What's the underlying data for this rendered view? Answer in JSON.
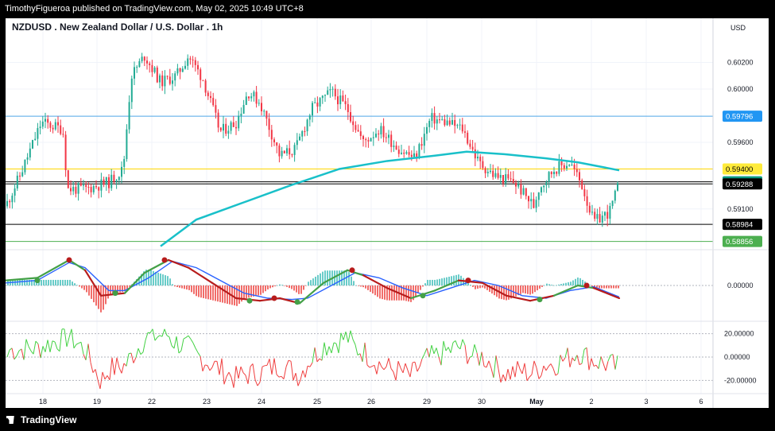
{
  "header": {
    "publish_line": "TimothyFigueroa published on TradingView.com, May 02, 2025 10:49 UTC+8"
  },
  "footer": {
    "logo_text": "TradingView"
  },
  "chart_data": [
    {
      "type": "candlestick",
      "title": "NZDUSD . New Zealand Dollar / U.S. Dollar . 1h",
      "currency": "USD",
      "x_tick_labels": [
        "18",
        "19",
        "22",
        "23",
        "24",
        "25",
        "26",
        "29",
        "30",
        "May",
        "2",
        "3",
        "6"
      ],
      "y_tick_labels": [
        "0.60200",
        "0.60000",
        "0.59600",
        "0.59100"
      ],
      "ylim": [
        0.588,
        0.604
      ],
      "price_path": [
        [
          0,
          0.5912
        ],
        [
          18,
          0.5935
        ],
        [
          45,
          0.5975
        ],
        [
          72,
          0.597
        ],
        [
          78,
          0.5925
        ],
        [
          100,
          0.5925
        ],
        [
          130,
          0.593
        ],
        [
          148,
          0.594
        ],
        [
          158,
          0.601
        ],
        [
          175,
          0.6025
        ],
        [
          195,
          0.6005
        ],
        [
          215,
          0.601
        ],
        [
          230,
          0.6025
        ],
        [
          248,
          0.6008
        ],
        [
          270,
          0.5968
        ],
        [
          290,
          0.5975
        ],
        [
          305,
          0.5998
        ],
        [
          320,
          0.599
        ],
        [
          345,
          0.595
        ],
        [
          365,
          0.5955
        ],
        [
          385,
          0.5985
        ],
        [
          410,
          0.5998
        ],
        [
          430,
          0.5985
        ],
        [
          450,
          0.596
        ],
        [
          470,
          0.597
        ],
        [
          495,
          0.5955
        ],
        [
          515,
          0.5948
        ],
        [
          535,
          0.5978
        ],
        [
          555,
          0.5975
        ],
        [
          575,
          0.597
        ],
        [
          595,
          0.5945
        ],
        [
          615,
          0.5935
        ],
        [
          640,
          0.593
        ],
        [
          665,
          0.5912
        ],
        [
          670,
          0.5925
        ],
        [
          690,
          0.594
        ],
        [
          710,
          0.5945
        ],
        [
          725,
          0.5928
        ],
        [
          740,
          0.59
        ],
        [
          760,
          0.5908
        ],
        [
          772,
          0.5929
        ]
      ],
      "moving_average": {
        "color": "#19c0c9",
        "points": [
          [
            195,
            0.5882
          ],
          [
            240,
            0.5902
          ],
          [
            300,
            0.5915
          ],
          [
            360,
            0.5928
          ],
          [
            420,
            0.594
          ],
          [
            480,
            0.5946
          ],
          [
            540,
            0.595
          ],
          [
            580,
            0.5953
          ],
          [
            630,
            0.5951
          ],
          [
            680,
            0.5948
          ],
          [
            720,
            0.5945
          ],
          [
            772,
            0.5939
          ]
        ]
      },
      "price_levels": [
        {
          "price": "0.59796",
          "value": 0.59796,
          "color": "#4fa7e6",
          "box": "#2196f3"
        },
        {
          "price": "0.59400",
          "value": 0.594,
          "color": "#ffd600",
          "box": "#ffeb3b"
        },
        {
          "price": "0.59304",
          "value": 0.59304,
          "color": "#000000",
          "box": "#089981"
        },
        {
          "price": "0.59288",
          "value": 0.59288,
          "color": "#000000",
          "box": "#000000"
        },
        {
          "price": "0.58984",
          "value": 0.58984,
          "color": "#000000",
          "box": "#000000"
        },
        {
          "price": "0.58856",
          "value": 0.58856,
          "color": "#4caf50",
          "box": "#4caf50"
        }
      ]
    },
    {
      "type": "line",
      "name": "oscillator",
      "y_tick_labels": [
        "0.00000"
      ],
      "zero": 0,
      "fast_line": [
        [
          0,
          0.2
        ],
        [
          40,
          0.3
        ],
        [
          80,
          1.0
        ],
        [
          100,
          0.6
        ],
        [
          120,
          -0.4
        ],
        [
          150,
          -0.3
        ],
        [
          175,
          0.5
        ],
        [
          205,
          1.0
        ],
        [
          230,
          0.7
        ],
        [
          260,
          0.1
        ],
        [
          290,
          -0.5
        ],
        [
          320,
          -0.6
        ],
        [
          345,
          -0.5
        ],
        [
          370,
          -0.7
        ],
        [
          400,
          0.1
        ],
        [
          430,
          0.6
        ],
        [
          450,
          0.4
        ],
        [
          480,
          -0.1
        ],
        [
          510,
          -0.5
        ],
        [
          540,
          -0.2
        ],
        [
          570,
          0.2
        ],
        [
          600,
          0.1
        ],
        [
          630,
          -0.4
        ],
        [
          660,
          -0.6
        ],
        [
          690,
          -0.4
        ],
        [
          720,
          0.0
        ],
        [
          740,
          -0.1
        ],
        [
          772,
          -0.5
        ]
      ],
      "slow_line": [
        [
          0,
          0.1
        ],
        [
          40,
          0.2
        ],
        [
          80,
          0.9
        ],
        [
          100,
          0.7
        ],
        [
          130,
          -0.2
        ],
        [
          150,
          -0.2
        ],
        [
          180,
          0.3
        ],
        [
          210,
          0.95
        ],
        [
          240,
          0.7
        ],
        [
          270,
          0.2
        ],
        [
          300,
          -0.3
        ],
        [
          330,
          -0.5
        ],
        [
          360,
          -0.55
        ],
        [
          380,
          -0.5
        ],
        [
          410,
          0.0
        ],
        [
          440,
          0.5
        ],
        [
          470,
          0.3
        ],
        [
          500,
          -0.1
        ],
        [
          530,
          -0.4
        ],
        [
          560,
          -0.1
        ],
        [
          590,
          0.2
        ],
        [
          620,
          0.0
        ],
        [
          650,
          -0.4
        ],
        [
          680,
          -0.5
        ],
        [
          710,
          -0.2
        ],
        [
          740,
          -0.05
        ],
        [
          772,
          -0.45
        ]
      ],
      "histogram_colors": {
        "positive": "#4fc3c0",
        "negative": "#ef5350"
      },
      "cross_markers": [
        {
          "x": 40,
          "value": 0.2,
          "kind": "bull"
        },
        {
          "x": 80,
          "value": 1.0,
          "kind": "bear"
        },
        {
          "x": 138,
          "value": -0.3,
          "kind": "bull"
        },
        {
          "x": 200,
          "value": 1.0,
          "kind": "bear"
        },
        {
          "x": 307,
          "value": -0.6,
          "kind": "bull"
        },
        {
          "x": 338,
          "value": -0.5,
          "kind": "bear"
        },
        {
          "x": 367,
          "value": -0.65,
          "kind": "bull"
        },
        {
          "x": 436,
          "value": 0.6,
          "kind": "bear"
        },
        {
          "x": 525,
          "value": -0.4,
          "kind": "bull"
        },
        {
          "x": 582,
          "value": 0.2,
          "kind": "bear"
        },
        {
          "x": 672,
          "value": -0.55,
          "kind": "bull"
        },
        {
          "x": 731,
          "value": 0.0,
          "kind": "bear"
        }
      ]
    },
    {
      "type": "line",
      "name": "momentum",
      "y_tick_labels": [
        "20.00000",
        "0.00000",
        "-20.00000"
      ],
      "ylim": [
        -30,
        30
      ],
      "colors": {
        "up": "#43d143",
        "down": "#ef3e3e"
      },
      "seed": 7
    }
  ]
}
